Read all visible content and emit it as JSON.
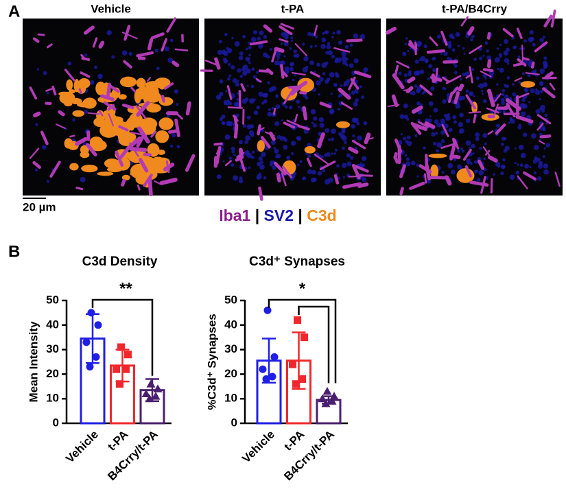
{
  "panel_a": {
    "label": "A",
    "images": [
      "Vehicle",
      "t-PA",
      "t-PA/B4Crry"
    ],
    "scale_bar": "20 µm",
    "legend": [
      {
        "name": "Iba1",
        "color": "#8a1f8c"
      },
      {
        "name": "SV2",
        "color": "#1a1aa8"
      },
      {
        "name": "C3d",
        "color": "#f08a1e"
      }
    ],
    "separator": "|"
  },
  "panel_b": {
    "label": "B"
  },
  "chart_data": [
    {
      "type": "bar",
      "title": "C3d Density",
      "y_label": "Mean  Intensity",
      "categories": [
        "Vehicle",
        "t-PA",
        "B4Crry/t-PA"
      ],
      "values": [
        34.5,
        23.5,
        13.5
      ],
      "errors": [
        10,
        6.5,
        4.5
      ],
      "colors": [
        "#1f1fe6",
        "#f0282d",
        "#4b1f6f"
      ],
      "markers": [
        "circle",
        "square",
        "triangle"
      ],
      "points": [
        [
          45,
          40,
          33,
          27,
          23
        ],
        [
          31,
          28,
          22,
          22,
          16
        ],
        [
          16,
          14,
          12,
          11,
          10
        ]
      ],
      "ylim": [
        0,
        50
      ],
      "yticks": [
        0,
        10,
        20,
        30,
        40,
        50
      ],
      "significance": {
        "label": "**",
        "pairs": [
          [
            0,
            2
          ]
        ]
      }
    },
    {
      "type": "bar",
      "title": "C3d⁺ Synapses",
      "y_label": "%C3d⁺ Synapses",
      "categories": [
        "Vehicle",
        "t-PA",
        "B4Crry/t-PA"
      ],
      "values": [
        25.5,
        25.5,
        9.5
      ],
      "errors": [
        9,
        11.5,
        1.5
      ],
      "colors": [
        "#1f1fe6",
        "#f0282d",
        "#4b1f6f"
      ],
      "markers": [
        "circle",
        "square",
        "triangle"
      ],
      "points": [
        [
          46,
          27,
          22,
          19,
          18
        ],
        [
          42,
          35,
          24,
          18,
          16
        ],
        [
          13,
          11,
          10,
          9,
          8
        ]
      ],
      "ylim": [
        0,
        50
      ],
      "yticks": [
        0,
        10,
        20,
        30,
        40,
        50
      ],
      "significance": {
        "label": "*",
        "pairs": [
          [
            0,
            2
          ],
          [
            1,
            2
          ]
        ]
      }
    }
  ]
}
